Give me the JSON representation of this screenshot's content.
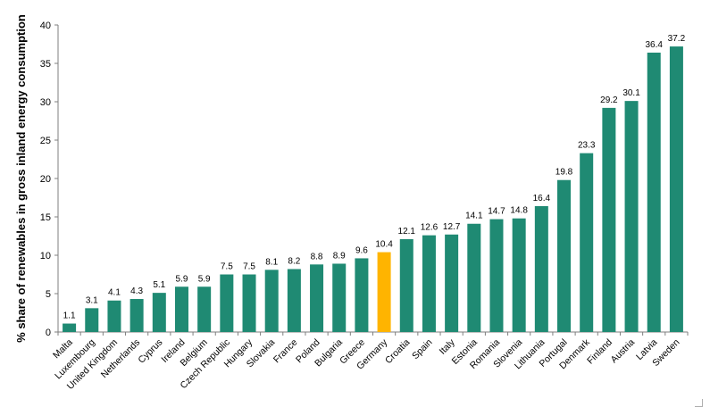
{
  "chart_data": {
    "type": "bar",
    "ylabel": "% share of renewables in gross inland energy consumption",
    "ylim": [
      0,
      40
    ],
    "yticks": [
      0,
      5,
      10,
      15,
      20,
      25,
      30,
      35,
      40
    ],
    "grid": false,
    "legend": "none",
    "highlight_category": "Germany",
    "colors": {
      "bar": "#1f8a73",
      "highlight": "#ffb400",
      "axis": "#7f7f7f",
      "text": "#000000"
    },
    "categories": [
      "Malta",
      "Luxembourg",
      "United Kingdom",
      "Netherlands",
      "Cyprus",
      "Ireland",
      "Belgium",
      "Czech Republic",
      "Hungary",
      "Slovakia",
      "France",
      "Poland",
      "Bulgaria",
      "Greece",
      "Germany",
      "Croatia",
      "Spain",
      "Italy",
      "Estonia",
      "Romania",
      "Slovenia",
      "Lithuania",
      "Portugal",
      "Denmark",
      "Finland",
      "Austria",
      "Latvia",
      "Sweden"
    ],
    "values": [
      1.1,
      3.1,
      4.1,
      4.3,
      5.1,
      5.9,
      5.9,
      7.5,
      7.5,
      8.1,
      8.2,
      8.8,
      8.9,
      9.6,
      10.4,
      12.1,
      12.6,
      12.7,
      14.1,
      14.7,
      14.8,
      16.4,
      19.8,
      23.3,
      29.2,
      30.1,
      36.4,
      37.2
    ]
  }
}
